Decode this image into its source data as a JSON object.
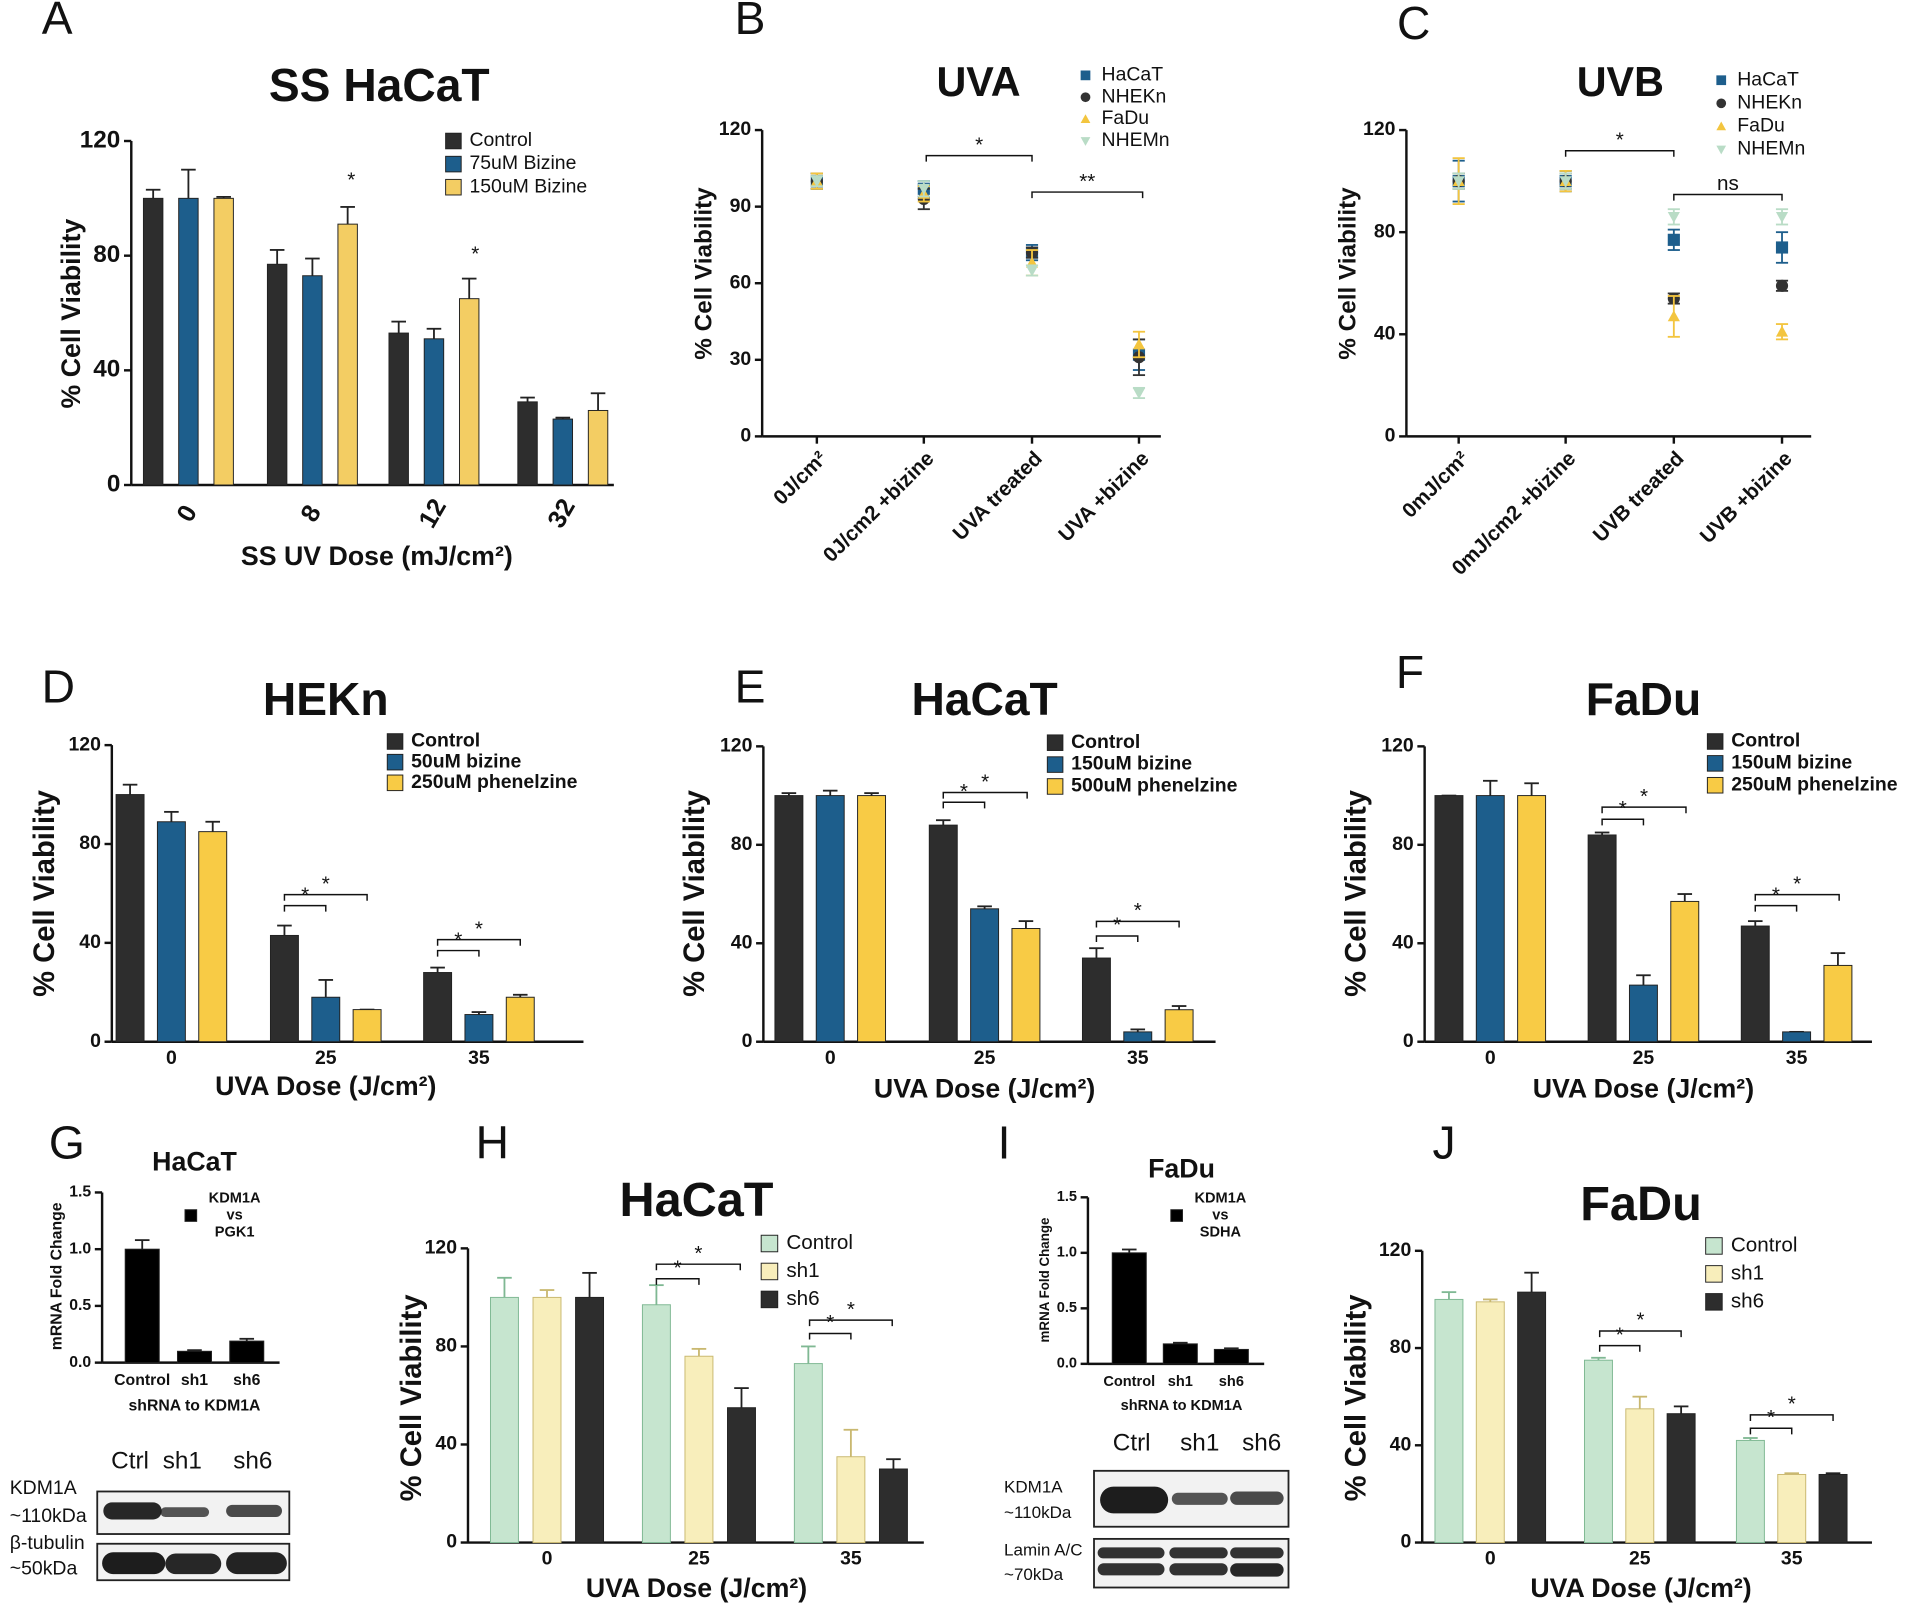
{
  "chart_data": [
    {
      "panel": "A",
      "type": "bar",
      "title": "SS HaCaT",
      "xlabel": "SS UV Dose (mJ/cm²)",
      "ylabel": "% Cell Viability",
      "categories": [
        "0",
        "8",
        "12",
        "32"
      ],
      "series": [
        {
          "name": "Control",
          "color": "#2d2d2d",
          "values": [
            100,
            77,
            53,
            29
          ],
          "errors": [
            3,
            5,
            4,
            1.5
          ]
        },
        {
          "name": "75uM Bizine",
          "color": "#1d5e8c",
          "values": [
            100,
            73,
            51,
            23
          ],
          "errors": [
            10,
            6,
            3.5,
            0.5
          ]
        },
        {
          "name": "150uM Bizine",
          "color": "#f3cd63",
          "values": [
            100,
            91,
            65,
            26
          ],
          "errors": [
            0.5,
            6,
            7,
            6
          ]
        }
      ],
      "ylim": [
        0,
        120
      ],
      "yticks": [
        0,
        40,
        80,
        120
      ],
      "annotations": [
        "*",
        "*"
      ]
    },
    {
      "panel": "B",
      "type": "scatter",
      "title": "UVA",
      "ylabel": "% Cell Viability",
      "categories": [
        "0J/cm²",
        "0J/cm2 +bizine",
        "UVA treated",
        "UVA +bizine"
      ],
      "series": [
        {
          "name": "HaCaT",
          "color": "#1d5e8c",
          "marker": "square",
          "values": [
            100,
            97,
            72,
            32
          ],
          "errors": [
            3,
            3,
            3,
            6
          ]
        },
        {
          "name": "NHEKn",
          "color": "#333333",
          "marker": "circle",
          "values": [
            100,
            93,
            72,
            31
          ],
          "errors": [
            3,
            4,
            2,
            7
          ]
        },
        {
          "name": "FaDu",
          "color": "#f3c53f",
          "marker": "triangle",
          "values": [
            100,
            95,
            68,
            36
          ],
          "errors": [
            3,
            3,
            5,
            5
          ]
        },
        {
          "name": "NHEMn",
          "color": "#b9dcc6",
          "marker": "triangle-down",
          "values": [
            100,
            97,
            65,
            17
          ],
          "errors": [
            2,
            3,
            2,
            2
          ]
        }
      ],
      "ylim": [
        0,
        120
      ],
      "yticks": [
        0,
        30,
        60,
        90,
        120
      ],
      "annotations": [
        "*",
        "**"
      ]
    },
    {
      "panel": "C",
      "type": "scatter",
      "title": "UVB",
      "ylabel": "% Cell Viability",
      "categories": [
        "0mJ/cm²",
        "0mJ/cm2 +bizine",
        "UVB treated",
        "UVB +bizine"
      ],
      "series": [
        {
          "name": "HaCaT",
          "color": "#1d5e8c",
          "marker": "square",
          "values": [
            100,
            100,
            77,
            74
          ],
          "errors": [
            8,
            4,
            4,
            6
          ]
        },
        {
          "name": "NHEKn",
          "color": "#333333",
          "marker": "circle",
          "values": [
            100,
            100,
            54,
            59
          ],
          "errors": [
            3,
            3,
            2,
            2
          ]
        },
        {
          "name": "FaDu",
          "color": "#f3c53f",
          "marker": "triangle",
          "values": [
            100,
            100,
            47,
            41
          ],
          "errors": [
            9,
            4,
            8,
            3
          ]
        },
        {
          "name": "NHEMn",
          "color": "#b9dcc6",
          "marker": "triangle-down",
          "values": [
            100,
            100,
            86,
            86
          ],
          "errors": [
            3,
            3,
            3,
            3
          ]
        }
      ],
      "ylim": [
        0,
        120
      ],
      "yticks": [
        0,
        40,
        80,
        120
      ],
      "annotations": [
        "*",
        "ns"
      ]
    },
    {
      "panel": "D",
      "type": "bar",
      "title": "HEKn",
      "xlabel": "UVA Dose (J/cm²)",
      "ylabel": "% Cell Viability",
      "categories": [
        "0",
        "25",
        "35"
      ],
      "series": [
        {
          "name": "Control",
          "color": "#2d2d2d",
          "values": [
            100,
            43,
            28
          ],
          "errors": [
            4,
            4,
            2
          ]
        },
        {
          "name": "50uM bizine",
          "color": "#1d5e8c",
          "values": [
            89,
            18,
            11
          ],
          "errors": [
            4,
            7,
            1
          ]
        },
        {
          "name": "250uM phenelzine",
          "color": "#f8cb45",
          "values": [
            85,
            13,
            18
          ],
          "errors": [
            4,
            0,
            1
          ]
        }
      ],
      "ylim": [
        0,
        120
      ],
      "yticks": [
        0,
        40,
        80,
        120
      ],
      "annotations": [
        "*",
        "*",
        "*",
        "*"
      ]
    },
    {
      "panel": "E",
      "type": "bar",
      "title": "HaCaT",
      "xlabel": "UVA Dose (J/cm²)",
      "ylabel": "% Cell Viability",
      "categories": [
        "0",
        "25",
        "35"
      ],
      "series": [
        {
          "name": "Control",
          "color": "#2d2d2d",
          "values": [
            100,
            88,
            34
          ],
          "errors": [
            1,
            2,
            4
          ]
        },
        {
          "name": "150uM bizine",
          "color": "#1d5e8c",
          "values": [
            100,
            54,
            4
          ],
          "errors": [
            2,
            1,
            1
          ]
        },
        {
          "name": "500uM phenelzine",
          "color": "#f8cb45",
          "values": [
            100,
            46,
            13
          ],
          "errors": [
            1,
            3,
            1.5
          ]
        }
      ],
      "ylim": [
        0,
        120
      ],
      "yticks": [
        0,
        40,
        80,
        120
      ],
      "annotations": [
        "*",
        "*",
        "*",
        "*"
      ]
    },
    {
      "panel": "F",
      "type": "bar",
      "title": "FaDu",
      "xlabel": "UVA Dose (J/cm²)",
      "ylabel": "% Cell Viability",
      "categories": [
        "0",
        "25",
        "35"
      ],
      "series": [
        {
          "name": "Control",
          "color": "#2d2d2d",
          "values": [
            100,
            84,
            47
          ],
          "errors": [
            0,
            1,
            2
          ]
        },
        {
          "name": "150uM bizine",
          "color": "#1d5e8c",
          "values": [
            100,
            23,
            4
          ],
          "errors": [
            6,
            4,
            0
          ]
        },
        {
          "name": "250uM phenelzine",
          "color": "#f8cb45",
          "values": [
            100,
            57,
            31
          ],
          "errors": [
            5,
            3,
            5
          ]
        }
      ],
      "ylim": [
        0,
        120
      ],
      "yticks": [
        0,
        40,
        80,
        120
      ],
      "annotations": [
        "*",
        "*",
        "*",
        "*"
      ]
    },
    {
      "panel": "G",
      "type": "bar",
      "title": "HaCaT",
      "xlabel": "shRNA to KDM1A",
      "ylabel": "mRNA Fold Change",
      "categories": [
        "Control",
        "sh1",
        "sh6"
      ],
      "series": [
        {
          "name": "KDM1A vs PGK1",
          "color": "#000000",
          "values": [
            1.0,
            0.1,
            0.19
          ],
          "errors": [
            0.08,
            0.01,
            0.02
          ]
        }
      ],
      "ylim": [
        0,
        1.5
      ],
      "yticks": [
        {
          "value": 0,
          "label": "0.0"
        },
        0.5,
        {
          "value": 1,
          "label": "1.0"
        },
        1.5
      ]
    },
    {
      "panel": "H",
      "type": "bar",
      "title": "HaCaT",
      "xlabel": "UVA Dose (J/cm²)",
      "ylabel": "% Cell Viability",
      "categories": [
        "0",
        "25",
        "35"
      ],
      "series": [
        {
          "name": "Control",
          "color": "#c6e5cf",
          "values": [
            100,
            97,
            73
          ],
          "errors": [
            8,
            8,
            7
          ]
        },
        {
          "name": "sh1",
          "color": "#f8eebb",
          "values": [
            100,
            76,
            35
          ],
          "errors": [
            3,
            3,
            11
          ]
        },
        {
          "name": "sh6",
          "color": "#2d2d2d",
          "values": [
            100,
            55,
            30
          ],
          "errors": [
            10,
            8,
            4
          ]
        }
      ],
      "ylim": [
        0,
        120
      ],
      "yticks": [
        0,
        40,
        80,
        120
      ],
      "annotations": [
        "*",
        "*",
        "*",
        "*"
      ]
    },
    {
      "panel": "I",
      "type": "bar",
      "title": "FaDu",
      "xlabel": "shRNA to KDM1A",
      "ylabel": "mRNA Fold Change",
      "categories": [
        "Control",
        "sh1",
        "sh6"
      ],
      "series": [
        {
          "name": "KDM1A vs SDHA",
          "color": "#000000",
          "values": [
            1.0,
            0.18,
            0.13
          ],
          "errors": [
            0.03,
            0.01,
            0.01
          ]
        }
      ],
      "ylim": [
        0,
        1.5
      ],
      "yticks": [
        {
          "value": 0,
          "label": "0.0"
        },
        0.5,
        {
          "value": 1,
          "label": "1.0"
        },
        1.5
      ]
    },
    {
      "panel": "J",
      "type": "bar",
      "title": "FaDu",
      "xlabel": "UVA Dose (J/cm²)",
      "ylabel": "% Cell Viability",
      "categories": [
        "0",
        "25",
        "35"
      ],
      "series": [
        {
          "name": "Control",
          "color": "#c6e5cf",
          "values": [
            100,
            75,
            42
          ],
          "errors": [
            3,
            1,
            1
          ]
        },
        {
          "name": "sh1",
          "color": "#f8eebb",
          "values": [
            99,
            55,
            28
          ],
          "errors": [
            1,
            5,
            0.5
          ]
        },
        {
          "name": "sh6",
          "color": "#2d2d2d",
          "values": [
            103,
            53,
            28
          ],
          "errors": [
            8,
            3,
            0.5
          ]
        }
      ],
      "ylim": [
        0,
        120
      ],
      "yticks": [
        0,
        40,
        80,
        120
      ],
      "annotations": [
        "*",
        "*",
        "*",
        "*"
      ]
    }
  ],
  "blots": [
    {
      "lanes": [
        "Ctrl",
        "sh1",
        "sh6"
      ],
      "labels": [
        "KDM1A",
        "~110kDa",
        "β-tubulin",
        "~50kDa"
      ]
    },
    {
      "lanes": [
        "Ctrl",
        "sh1",
        "sh6"
      ],
      "labels": [
        "KDM1A",
        "~110kDa",
        "Lamin A/C",
        "~70kDa"
      ]
    }
  ]
}
